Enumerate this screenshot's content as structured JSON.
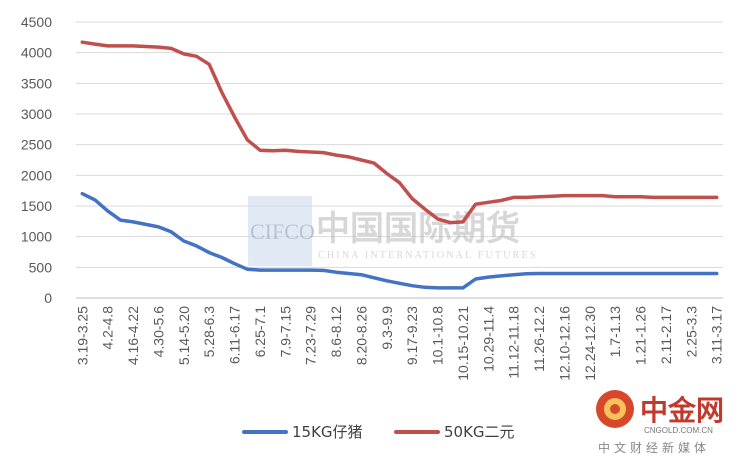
{
  "chart_data": {
    "type": "line",
    "categories": [
      "3.19-3.25",
      "3.26-4.1",
      "4.2-4.8",
      "4.9-4.15",
      "4.16-4.22",
      "4.23-4.29",
      "4.30-5.6",
      "5.7-5.13",
      "5.14-5.20",
      "5.21-5.27",
      "5.28-6.3",
      "6.4-6.10",
      "6.11-6.17",
      "6.18-6.24",
      "6.25-7.1",
      "7.2-7.8",
      "7.9-7.15",
      "7.16-7.22",
      "7.23-7.29",
      "7.30-8.5",
      "8.6-8.12",
      "8.13-8.19",
      "8.20-8.26",
      "8.27-9.2",
      "9.3-9.9",
      "9.10-9.16",
      "9.17-9.23",
      "9.24-9.30",
      "10.1-10.8",
      "10.9-10.14",
      "10.15-10.21",
      "10.22-10.28",
      "10.29-11.4",
      "11.5-11.11",
      "11.12-11.18",
      "11.19-11.25",
      "11.26-12.2",
      "12.3-12.9",
      "12.10-12.16",
      "12.17-12.23",
      "12.24-12.30",
      "12.31-1.6",
      "1.7-1.13",
      "1.14-1.20",
      "1.21-1.26",
      "1.27-2.10",
      "2.11-2.17",
      "2.18-2.24",
      "2.25-3.3",
      "3.4-3.10",
      "3.11-3.17"
    ],
    "visible_tick_labels": [
      "3.19-3.25",
      "4.2-4.8",
      "4.16-4.22",
      "4.30-5.6",
      "5.14-5.20",
      "5.28-6.3",
      "6.11-6.17",
      "6.25-7.1",
      "7.9-7.15",
      "7.23-7.29",
      "8.6-8.12",
      "8.20-8.26",
      "9.3-9.9",
      "9.17-9.23",
      "10.1-10.8",
      "10.15-10.21",
      "10.29-11.4",
      "11.12-11.18",
      "11.26-12.2",
      "12.10-12.16",
      "12.24-12.30",
      "1.7-1.13",
      "1.21-1.26",
      "2.11-2.17",
      "2.25-3.3",
      "3.11-3.17"
    ],
    "series": [
      {
        "name": "15KG仔猪",
        "color": "#4472C4",
        "values": [
          1700,
          1600,
          1420,
          1270,
          1240,
          1200,
          1160,
          1080,
          930,
          850,
          740,
          660,
          560,
          470,
          455,
          455,
          455,
          455,
          455,
          450,
          420,
          400,
          380,
          330,
          280,
          240,
          200,
          175,
          165,
          165,
          165,
          310,
          340,
          360,
          380,
          395,
          400,
          400,
          400,
          400,
          400,
          400,
          400,
          400,
          400,
          400,
          400,
          400,
          400,
          400,
          400
        ]
      },
      {
        "name": "50KG二元",
        "color": "#C0504D",
        "values": [
          4170,
          4140,
          4110,
          4110,
          4110,
          4100,
          4090,
          4070,
          3980,
          3940,
          3810,
          3350,
          2950,
          2580,
          2410,
          2400,
          2410,
          2390,
          2380,
          2370,
          2330,
          2300,
          2250,
          2200,
          2030,
          1880,
          1620,
          1450,
          1290,
          1230,
          1240,
          1530,
          1560,
          1590,
          1640,
          1640,
          1650,
          1660,
          1670,
          1670,
          1670,
          1670,
          1650,
          1650,
          1650,
          1640,
          1640,
          1640,
          1640,
          1640,
          1640
        ]
      }
    ],
    "yticks": [
      0,
      500,
      1000,
      1500,
      2000,
      2500,
      3000,
      3500,
      4000,
      4500
    ],
    "ylim": [
      0,
      4500
    ],
    "grid": true,
    "legend_position": "bottom",
    "title": "",
    "xlabel": "",
    "ylabel": ""
  },
  "watermarks": {
    "cifco_abbr": "CIFCO",
    "cifco_cn": "中国国际期货",
    "cifco_en": "CHINA INTERNATIONAL FUTURES",
    "cngold_name": "中金网",
    "cngold_url": "CNGOLD.COM.CN",
    "cngold_tagline": "中文财经新媒体"
  }
}
